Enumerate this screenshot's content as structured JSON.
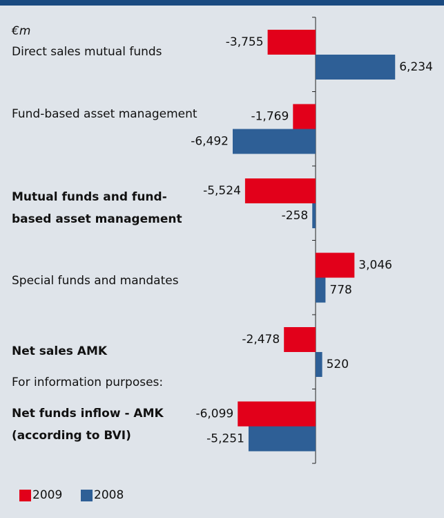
{
  "chart_data": {
    "type": "bar",
    "orientation": "horizontal",
    "unit_label": "€m",
    "annotation": "For information purposes:",
    "categories": [
      [
        "Direct sales mutual funds"
      ],
      [
        "Fund-based asset management"
      ],
      [
        "Mutual funds and fund-",
        "based asset management"
      ],
      [
        "Special funds and mandates"
      ],
      [
        "Net sales AMK"
      ],
      [
        "Net funds inflow - AMK",
        "(according to BVI)"
      ]
    ],
    "bold": [
      false,
      false,
      true,
      false,
      true,
      true
    ],
    "series": [
      {
        "name": "2009",
        "color": "#e2001a",
        "values": [
          -3755,
          -1769,
          -5524,
          3046,
          -2478,
          -6099
        ],
        "value_labels": [
          "-3,755",
          "-1,769",
          "-5,524",
          "3,046",
          "-2,478",
          "-6,099"
        ]
      },
      {
        "name": "2008",
        "color": "#2e5f96",
        "values": [
          6234,
          -6492,
          -258,
          778,
          520,
          -5251
        ],
        "value_labels": [
          "6,234",
          "-6,492",
          "-258",
          "778",
          "520",
          "-5,251"
        ]
      }
    ]
  }
}
